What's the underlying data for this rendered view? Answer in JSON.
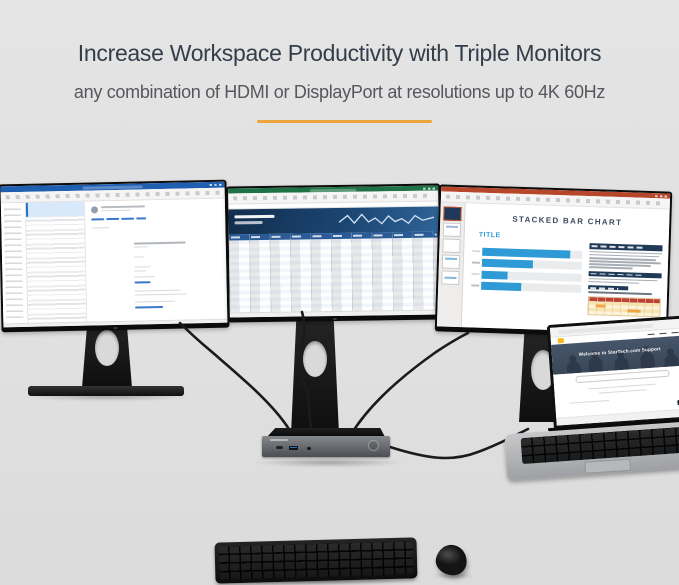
{
  "header": {
    "title": "Increase Workspace Productivity with Triple Monitors",
    "subtitle": "any combination of HDMI or DisplayPort at resolutions up to 4K 60Hz"
  },
  "colors": {
    "accent_underline": "#ECA53C",
    "heading_text": "#333E4A",
    "subtitle_text": "#55575C",
    "outlook_blue": "#1E5FB2",
    "excel_green": "#1F7246",
    "powerpoint_red": "#B7472A",
    "chart_bar_blue": "#2E9BD6",
    "chart_track": "#E9EBED",
    "navy_panel": "#1F3A57",
    "startech_yellow": "#FFB81C"
  },
  "scene": {
    "left_monitor_app": "email client",
    "center_monitor_app": "spreadsheet",
    "right_monitor_app": "presentation",
    "devices": [
      "monitor",
      "monitor",
      "monitor",
      "laptop",
      "docking station",
      "keyboard",
      "mouse"
    ]
  },
  "presentation": {
    "slide_title": "STACKED BAR CHART",
    "chart_data": {
      "type": "bar",
      "title": "TITLE",
      "values": [
        88,
        51,
        26,
        40
      ],
      "bar_color": "#2E9BD6",
      "track_color": "#E9EBED",
      "orientation": "horizontal",
      "value_labels_shown": true
    }
  },
  "laptop_site": {
    "hero_text": "Welcome to StarTech.com Support"
  }
}
